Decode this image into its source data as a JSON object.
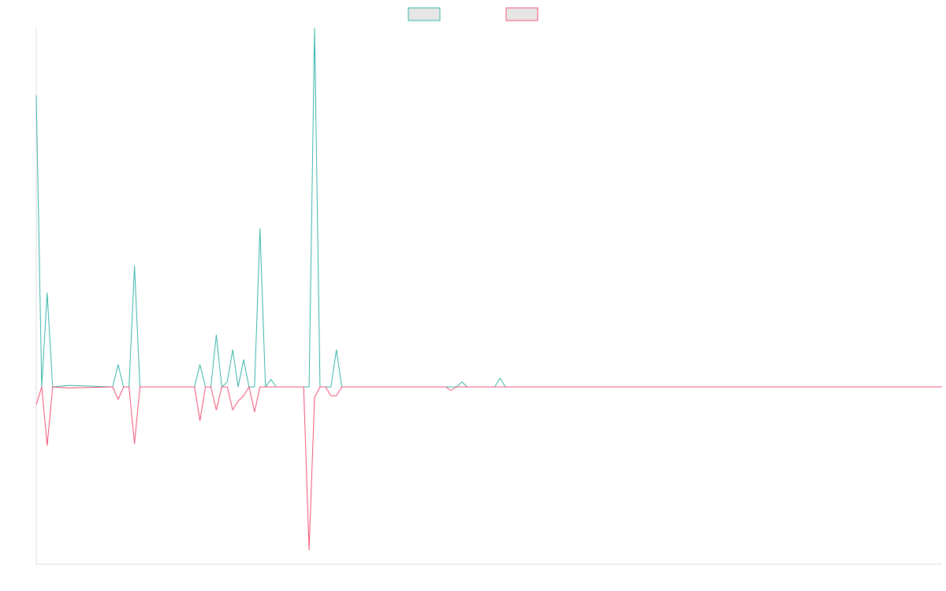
{
  "chart_data": {
    "type": "line",
    "title": "",
    "xlabel": "",
    "ylabel": "",
    "grid": false,
    "legend_placement": "top-center",
    "x_count": 167,
    "ylim": [
      -100,
      145
    ],
    "series": [
      {
        "color": "#36b3a8",
        "fill": "#e6e6e6",
        "points": [
          [
            0,
            118
          ],
          [
            1,
            0
          ],
          [
            2,
            38
          ],
          [
            3,
            0
          ],
          [
            6,
            0.6
          ],
          [
            14,
            0
          ],
          [
            15,
            9
          ],
          [
            16,
            0
          ],
          [
            17,
            0
          ],
          [
            18,
            49
          ],
          [
            19,
            0
          ],
          [
            20,
            0
          ],
          [
            29,
            0
          ],
          [
            30,
            9
          ],
          [
            31,
            0
          ],
          [
            32,
            0
          ],
          [
            33,
            21
          ],
          [
            34,
            0
          ],
          [
            35,
            2
          ],
          [
            36,
            15
          ],
          [
            37,
            0
          ],
          [
            38,
            11
          ],
          [
            39,
            0
          ],
          [
            40,
            0
          ],
          [
            41,
            64
          ],
          [
            42,
            0
          ],
          [
            43,
            3
          ],
          [
            44,
            0
          ],
          [
            47,
            0
          ],
          [
            48,
            0
          ],
          [
            50,
            0
          ],
          [
            51,
            145
          ],
          [
            52,
            0
          ],
          [
            53,
            0
          ],
          [
            54,
            0
          ],
          [
            55,
            15
          ],
          [
            56,
            0
          ],
          [
            60,
            0
          ],
          [
            64,
            0
          ],
          [
            69,
            0
          ],
          [
            74,
            0
          ],
          [
            75,
            0
          ],
          [
            76,
            0
          ],
          [
            77,
            0
          ],
          [
            78,
            2
          ],
          [
            79,
            0
          ],
          [
            84,
            0
          ],
          [
            85,
            3.5
          ],
          [
            86,
            0
          ],
          [
            166,
            0
          ]
        ]
      },
      {
        "color": "#f05073",
        "fill": "#e6e6e6",
        "points": [
          [
            0,
            -10
          ],
          [
            1,
            0
          ],
          [
            2,
            -33
          ],
          [
            3,
            0
          ],
          [
            6,
            -0.6
          ],
          [
            14,
            0
          ],
          [
            15,
            -7
          ],
          [
            16,
            0
          ],
          [
            17,
            0
          ],
          [
            18,
            -32
          ],
          [
            19,
            0
          ],
          [
            20,
            0
          ],
          [
            29,
            0
          ],
          [
            30,
            -19
          ],
          [
            31,
            0
          ],
          [
            32,
            0
          ],
          [
            33,
            -13
          ],
          [
            34,
            0
          ],
          [
            35,
            0
          ],
          [
            36,
            -13
          ],
          [
            37,
            -8
          ],
          [
            38,
            -5
          ],
          [
            39,
            0
          ],
          [
            40,
            -14
          ],
          [
            41,
            0
          ],
          [
            42,
            0
          ],
          [
            43,
            0
          ],
          [
            44,
            0
          ],
          [
            47,
            0
          ],
          [
            48,
            0
          ],
          [
            49,
            0
          ],
          [
            50,
            -92
          ],
          [
            51,
            -6
          ],
          [
            52,
            0
          ],
          [
            53,
            0
          ],
          [
            54,
            -5
          ],
          [
            55,
            -5
          ],
          [
            56,
            0
          ],
          [
            60,
            0
          ],
          [
            64,
            0
          ],
          [
            69,
            0
          ],
          [
            74,
            0
          ],
          [
            75,
            0
          ],
          [
            76,
            -2
          ],
          [
            77,
            0
          ],
          [
            78,
            0
          ],
          [
            79,
            0
          ],
          [
            84,
            0
          ],
          [
            85,
            0
          ],
          [
            86,
            0
          ],
          [
            166,
            0
          ]
        ]
      }
    ]
  }
}
